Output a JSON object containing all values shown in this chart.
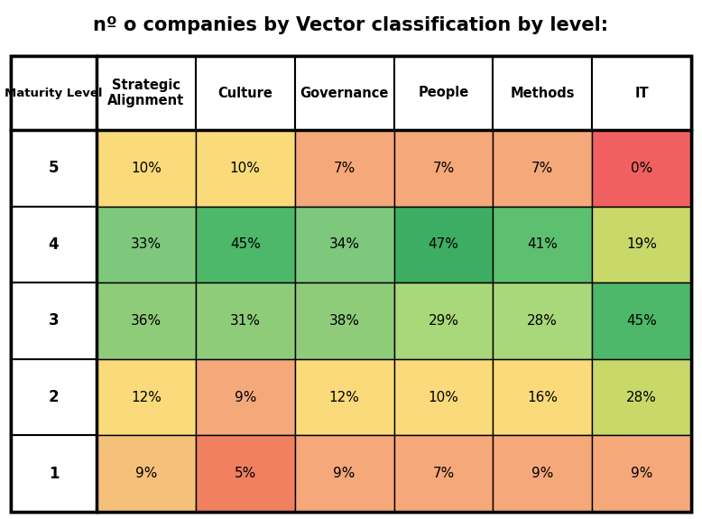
{
  "title": "nº o companies by Vector classification by level:",
  "col_headers": [
    "Strategic\nAlignment",
    "Culture",
    "Governance",
    "People",
    "Methods",
    "IT"
  ],
  "row_headers": [
    "5",
    "4",
    "3",
    "2",
    "1"
  ],
  "row_label": "Maturity Level",
  "values": [
    [
      "10%",
      "10%",
      "7%",
      "7%",
      "7%",
      "0%"
    ],
    [
      "33%",
      "45%",
      "34%",
      "47%",
      "41%",
      "19%"
    ],
    [
      "36%",
      "31%",
      "38%",
      "29%",
      "28%",
      "45%"
    ],
    [
      "12%",
      "9%",
      "12%",
      "10%",
      "16%",
      "28%"
    ],
    [
      "9%",
      "5%",
      "9%",
      "7%",
      "9%",
      "9%"
    ]
  ],
  "colors": [
    [
      "#FADA7A",
      "#FADA7A",
      "#F5A87A",
      "#F5A87A",
      "#F5A87A",
      "#F06060"
    ],
    [
      "#7DC87D",
      "#4DB86A",
      "#7DC87D",
      "#3DAD63",
      "#5DC070",
      "#C8D96A"
    ],
    [
      "#8FCC7A",
      "#8FCC7A",
      "#8FCC7A",
      "#A8D87A",
      "#A8D87A",
      "#4DB86A"
    ],
    [
      "#FADA7A",
      "#F5A87A",
      "#FADA7A",
      "#FADA7A",
      "#FADA7A",
      "#C8D96A"
    ],
    [
      "#F5C07A",
      "#F08060",
      "#F5A87A",
      "#F5A87A",
      "#F5A87A",
      "#F5A87A"
    ]
  ],
  "title_fontsize": 15,
  "header_fontsize": 10.5,
  "cell_fontsize": 11,
  "row_label_fontsize": 9.5,
  "row_header_fontsize": 12,
  "fig_width": 7.78,
  "fig_height": 5.75,
  "dpi": 100
}
